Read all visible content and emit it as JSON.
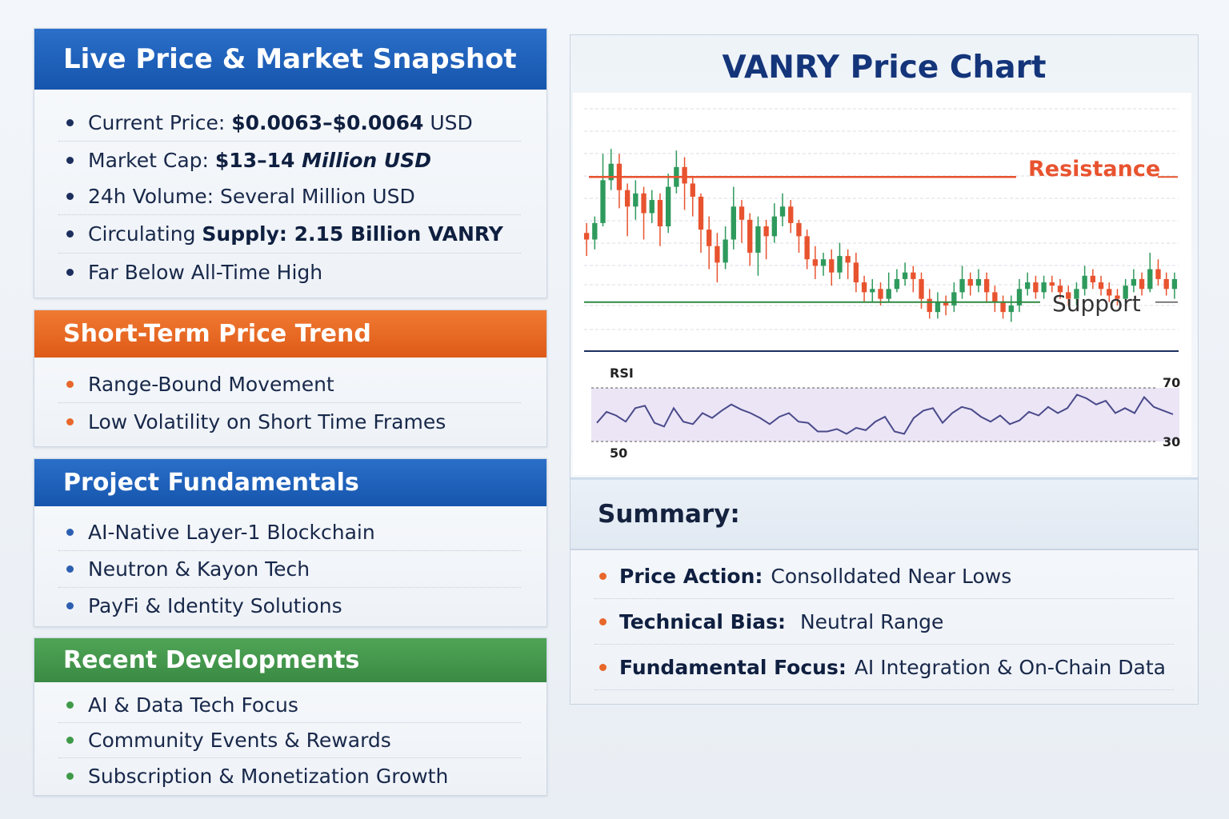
{
  "snapshot": {
    "title": "Live Price & Market Snapshot",
    "price_label": "Current Price: ",
    "price_value": "$0.0063–$0.0064",
    "price_unit": " USD",
    "cap_label": "Market Cap: ",
    "cap_value_bold": "$13–14 ",
    "cap_value_italic": "Million USD",
    "volume": "24h Volume: Several Million USD",
    "supply_label": "Circulating ",
    "supply_value": "Supply: 2.15 Billion VANRY",
    "ath": "Far Below All-Time High"
  },
  "trend": {
    "title": "Short-Term Price Trend",
    "items": [
      "Range-Bound Movement",
      "Low Volatility on Short Time Frames"
    ]
  },
  "fundamentals": {
    "title": "Project Fundamentals",
    "items": [
      "AI-Native Layer-1 Blockchain",
      "Neutron & Kayon Tech",
      "PayFi & Identity Solutions"
    ]
  },
  "developments": {
    "title": "Recent Developments",
    "items": [
      "AI & Data Tech Focus",
      "Community Events & Rewards",
      "Subscription & Monetization Growth"
    ]
  },
  "colors": {
    "up": "#2e9a5c",
    "down": "#e8532f",
    "resistance": "#e8532f",
    "support": "#2f8a42",
    "rsi_line": "#4a4a8a",
    "rsi_band": "#e7e0f4"
  },
  "chart_data": {
    "type": "candlestick",
    "title": "VANRY Price Chart",
    "annotations": [
      "Resistance",
      "Support"
    ],
    "rsi": {
      "label": "RSI",
      "band_upper_label": "70",
      "band_lower_label": "30",
      "axis_label": "50",
      "values": [
        43,
        52,
        49,
        44,
        55,
        57,
        43,
        40,
        55,
        44,
        42,
        51,
        47,
        53,
        58,
        54,
        51,
        47,
        42,
        48,
        51,
        44,
        43,
        36,
        36,
        38,
        34,
        39,
        37,
        44,
        48,
        36,
        34,
        47,
        53,
        55,
        43,
        51,
        56,
        54,
        48,
        44,
        49,
        42,
        45,
        52,
        49,
        56,
        51,
        55,
        66,
        63,
        58,
        61,
        51,
        55,
        51,
        64,
        56,
        53,
        50
      ],
      "ylim": [
        20,
        80
      ]
    },
    "price_axis": [
      0,
      100
    ],
    "resistance_level": 80,
    "support_level": 4,
    "candles": [
      {
        "o": 46,
        "c": 42,
        "h": 52,
        "l": 32
      },
      {
        "o": 42,
        "c": 52,
        "h": 56,
        "l": 36
      },
      {
        "o": 52,
        "c": 78,
        "h": 94,
        "l": 50
      },
      {
        "o": 78,
        "c": 88,
        "h": 97,
        "l": 72
      },
      {
        "o": 88,
        "c": 72,
        "h": 94,
        "l": 61
      },
      {
        "o": 72,
        "c": 62,
        "h": 76,
        "l": 44
      },
      {
        "o": 62,
        "c": 70,
        "h": 78,
        "l": 54
      },
      {
        "o": 70,
        "c": 58,
        "h": 74,
        "l": 42
      },
      {
        "o": 58,
        "c": 66,
        "h": 72,
        "l": 52
      },
      {
        "o": 66,
        "c": 50,
        "h": 70,
        "l": 38
      },
      {
        "o": 50,
        "c": 74,
        "h": 82,
        "l": 46
      },
      {
        "o": 74,
        "c": 86,
        "h": 96,
        "l": 70
      },
      {
        "o": 86,
        "c": 76,
        "h": 92,
        "l": 60
      },
      {
        "o": 76,
        "c": 68,
        "h": 80,
        "l": 56
      },
      {
        "o": 68,
        "c": 48,
        "h": 70,
        "l": 34
      },
      {
        "o": 48,
        "c": 38,
        "h": 56,
        "l": 24
      },
      {
        "o": 38,
        "c": 28,
        "h": 46,
        "l": 16
      },
      {
        "o": 28,
        "c": 42,
        "h": 50,
        "l": 24
      },
      {
        "o": 42,
        "c": 62,
        "h": 74,
        "l": 36
      },
      {
        "o": 62,
        "c": 54,
        "h": 66,
        "l": 40
      },
      {
        "o": 54,
        "c": 34,
        "h": 58,
        "l": 26
      },
      {
        "o": 34,
        "c": 50,
        "h": 56,
        "l": 20
      },
      {
        "o": 50,
        "c": 44,
        "h": 54,
        "l": 30
      },
      {
        "o": 44,
        "c": 56,
        "h": 64,
        "l": 40
      },
      {
        "o": 56,
        "c": 62,
        "h": 70,
        "l": 50
      },
      {
        "o": 62,
        "c": 52,
        "h": 66,
        "l": 46
      },
      {
        "o": 52,
        "c": 44,
        "h": 54,
        "l": 34
      },
      {
        "o": 44,
        "c": 30,
        "h": 48,
        "l": 24
      },
      {
        "o": 30,
        "c": 26,
        "h": 38,
        "l": 18
      },
      {
        "o": 26,
        "c": 30,
        "h": 34,
        "l": 20
      },
      {
        "o": 30,
        "c": 22,
        "h": 36,
        "l": 14
      },
      {
        "o": 22,
        "c": 32,
        "h": 40,
        "l": 18
      },
      {
        "o": 32,
        "c": 28,
        "h": 36,
        "l": 18
      },
      {
        "o": 28,
        "c": 16,
        "h": 34,
        "l": 10
      },
      {
        "o": 16,
        "c": 10,
        "h": 20,
        "l": 4
      },
      {
        "o": 10,
        "c": 12,
        "h": 18,
        "l": 4
      },
      {
        "o": 12,
        "c": 6,
        "h": 16,
        "l": 2
      },
      {
        "o": 6,
        "c": 12,
        "h": 22,
        "l": 4
      },
      {
        "o": 12,
        "c": 18,
        "h": 24,
        "l": 10
      },
      {
        "o": 18,
        "c": 22,
        "h": 28,
        "l": 14
      },
      {
        "o": 22,
        "c": 18,
        "h": 26,
        "l": 10
      },
      {
        "o": 18,
        "c": 6,
        "h": 22,
        "l": 0
      },
      {
        "o": 6,
        "c": -2,
        "h": 12,
        "l": -6
      },
      {
        "o": -2,
        "c": 4,
        "h": 10,
        "l": -6
      },
      {
        "o": 4,
        "c": 2,
        "h": 8,
        "l": -4
      },
      {
        "o": 2,
        "c": 10,
        "h": 16,
        "l": -2
      },
      {
        "o": 10,
        "c": 18,
        "h": 26,
        "l": 6
      },
      {
        "o": 18,
        "c": 14,
        "h": 22,
        "l": 8
      },
      {
        "o": 14,
        "c": 18,
        "h": 24,
        "l": 10
      },
      {
        "o": 18,
        "c": 10,
        "h": 22,
        "l": 4
      },
      {
        "o": 10,
        "c": 4,
        "h": 14,
        "l": -2
      },
      {
        "o": 4,
        "c": -2,
        "h": 8,
        "l": -6
      },
      {
        "o": -2,
        "c": 2,
        "h": 8,
        "l": -8
      },
      {
        "o": 2,
        "c": 12,
        "h": 18,
        "l": -2
      },
      {
        "o": 12,
        "c": 16,
        "h": 22,
        "l": 8
      },
      {
        "o": 16,
        "c": 10,
        "h": 20,
        "l": 6
      },
      {
        "o": 10,
        "c": 16,
        "h": 20,
        "l": 6
      },
      {
        "o": 16,
        "c": 14,
        "h": 20,
        "l": 10
      },
      {
        "o": 14,
        "c": 10,
        "h": 18,
        "l": 6
      },
      {
        "o": 10,
        "c": 6,
        "h": 14,
        "l": 2
      },
      {
        "o": 6,
        "c": 12,
        "h": 16,
        "l": 2
      },
      {
        "o": 12,
        "c": 20,
        "h": 26,
        "l": 8
      },
      {
        "o": 20,
        "c": 16,
        "h": 24,
        "l": 12
      },
      {
        "o": 16,
        "c": 12,
        "h": 20,
        "l": 8
      },
      {
        "o": 12,
        "c": 8,
        "h": 16,
        "l": 4
      },
      {
        "o": 8,
        "c": 6,
        "h": 12,
        "l": 2
      },
      {
        "o": 6,
        "c": 14,
        "h": 18,
        "l": 4
      },
      {
        "o": 14,
        "c": 18,
        "h": 24,
        "l": 10
      },
      {
        "o": 18,
        "c": 12,
        "h": 22,
        "l": 8
      },
      {
        "o": 12,
        "c": 24,
        "h": 34,
        "l": 10
      },
      {
        "o": 24,
        "c": 18,
        "h": 30,
        "l": 14
      },
      {
        "o": 18,
        "c": 12,
        "h": 22,
        "l": 8
      },
      {
        "o": 12,
        "c": 18,
        "h": 22,
        "l": 6
      }
    ]
  },
  "summary": {
    "title": "Summary:",
    "items": [
      {
        "label": "Price Action:",
        "text": "Consolldated Near Lows"
      },
      {
        "label": "Technical Bias:",
        "text": " Neutral Range"
      },
      {
        "label": "Fundamental Focus:",
        "text": "AI Integration & On-Chain Data"
      }
    ]
  }
}
